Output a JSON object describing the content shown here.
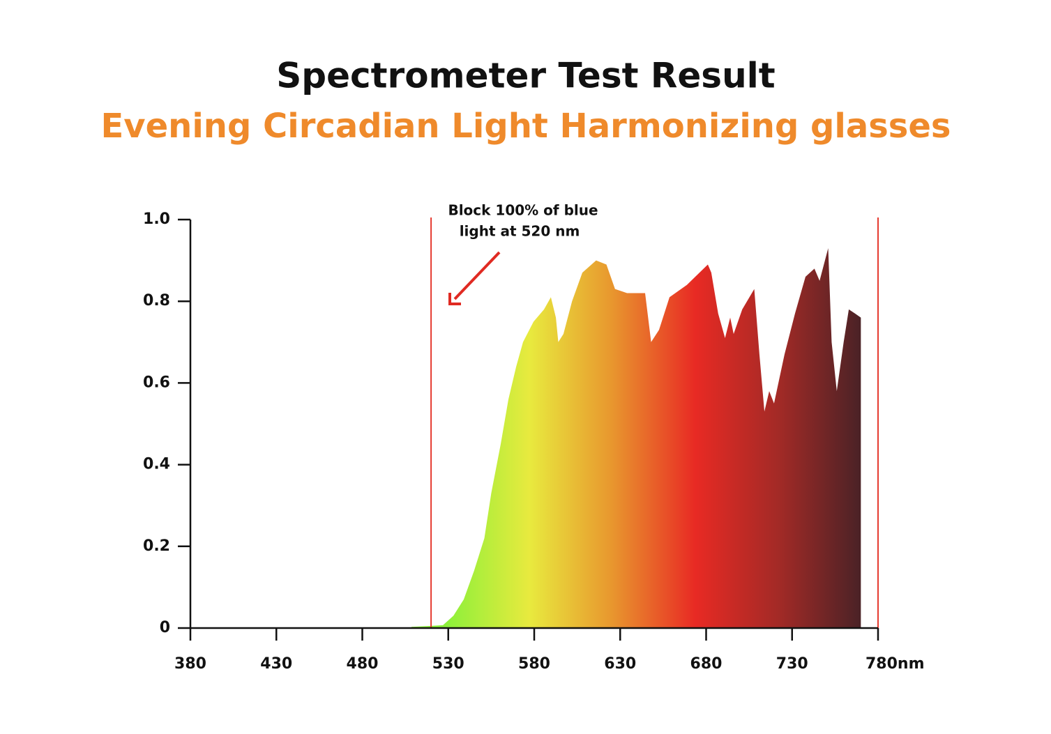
{
  "chart_data": {
    "type": "area",
    "title": "Spectrometer Test Result",
    "subtitle": "Evening Circadian Light Harmonizing glasses",
    "annotation": [
      "Block 100% of blue",
      "light at 520 nm"
    ],
    "x": [
      508.6,
      518.3,
      526.9,
      533,
      539,
      545,
      551,
      555,
      560.5,
      565,
      569.5,
      573.5,
      579.6,
      585.7,
      589.7,
      592.6,
      594,
      597,
      602,
      608,
      616,
      622,
      627,
      634,
      644.5,
      648,
      652.6,
      658.7,
      668.8,
      681,
      683,
      687,
      691,
      694,
      696,
      701,
      708,
      711,
      713.9,
      716.7,
      719.5,
      725.6,
      731.7,
      737.8,
      743,
      746,
      751,
      753,
      756,
      760,
      763,
      766.6,
      770
    ],
    "values": [
      0.003,
      0.005,
      0.007,
      0.03,
      0.07,
      0.14,
      0.22,
      0.33,
      0.45,
      0.56,
      0.64,
      0.7,
      0.75,
      0.78,
      0.81,
      0.76,
      0.7,
      0.72,
      0.8,
      0.87,
      0.9,
      0.89,
      0.83,
      0.82,
      0.82,
      0.7,
      0.73,
      0.81,
      0.84,
      0.89,
      0.87,
      0.77,
      0.71,
      0.76,
      0.72,
      0.78,
      0.83,
      0.67,
      0.53,
      0.58,
      0.55,
      0.67,
      0.77,
      0.86,
      0.88,
      0.85,
      0.93,
      0.7,
      0.58,
      0.7,
      0.78,
      0.77,
      0.76
    ],
    "colors": [
      "#8cf03a",
      "#e8ea3e",
      "#e8962e",
      "#e82a24",
      "#a32a26",
      "#4a2226"
    ],
    "vlines": [
      520,
      780
    ],
    "vline_color": "#e53a2f",
    "xlim": [
      380,
      780
    ],
    "xticks": [
      380,
      430,
      480,
      530,
      580,
      630,
      680,
      730,
      {
        "value": 780,
        "label": "780nm"
      }
    ],
    "ylim": [
      0,
      1
    ],
    "yticks": [
      0,
      0.2,
      0.4,
      0.6,
      0.8,
      {
        "value": 1,
        "label": "1.0"
      }
    ]
  }
}
